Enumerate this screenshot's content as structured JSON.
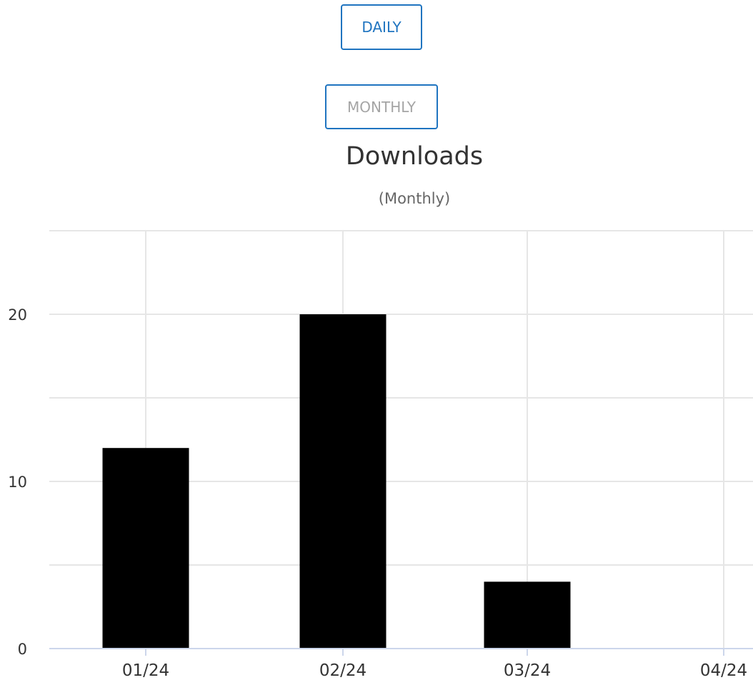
{
  "toggles": {
    "daily_label": "DAILY",
    "monthly_label": "MONTHLY",
    "selected": "MONTHLY"
  },
  "colors": {
    "accent": "#1f74c0",
    "bar": "#000000",
    "grid": "#e6e6e6",
    "inactive_text": "#a5a5a5"
  },
  "chart_data": {
    "type": "bar",
    "title": "Downloads",
    "subtitle": "(Monthly)",
    "categories": [
      "01/24",
      "02/24",
      "03/24",
      "04/24"
    ],
    "values": [
      12,
      20,
      4,
      0
    ],
    "xlabel": "",
    "ylabel": "",
    "ylim": [
      0,
      25
    ],
    "yticks": [
      0,
      10,
      20
    ],
    "grid": true,
    "legend": "none"
  }
}
